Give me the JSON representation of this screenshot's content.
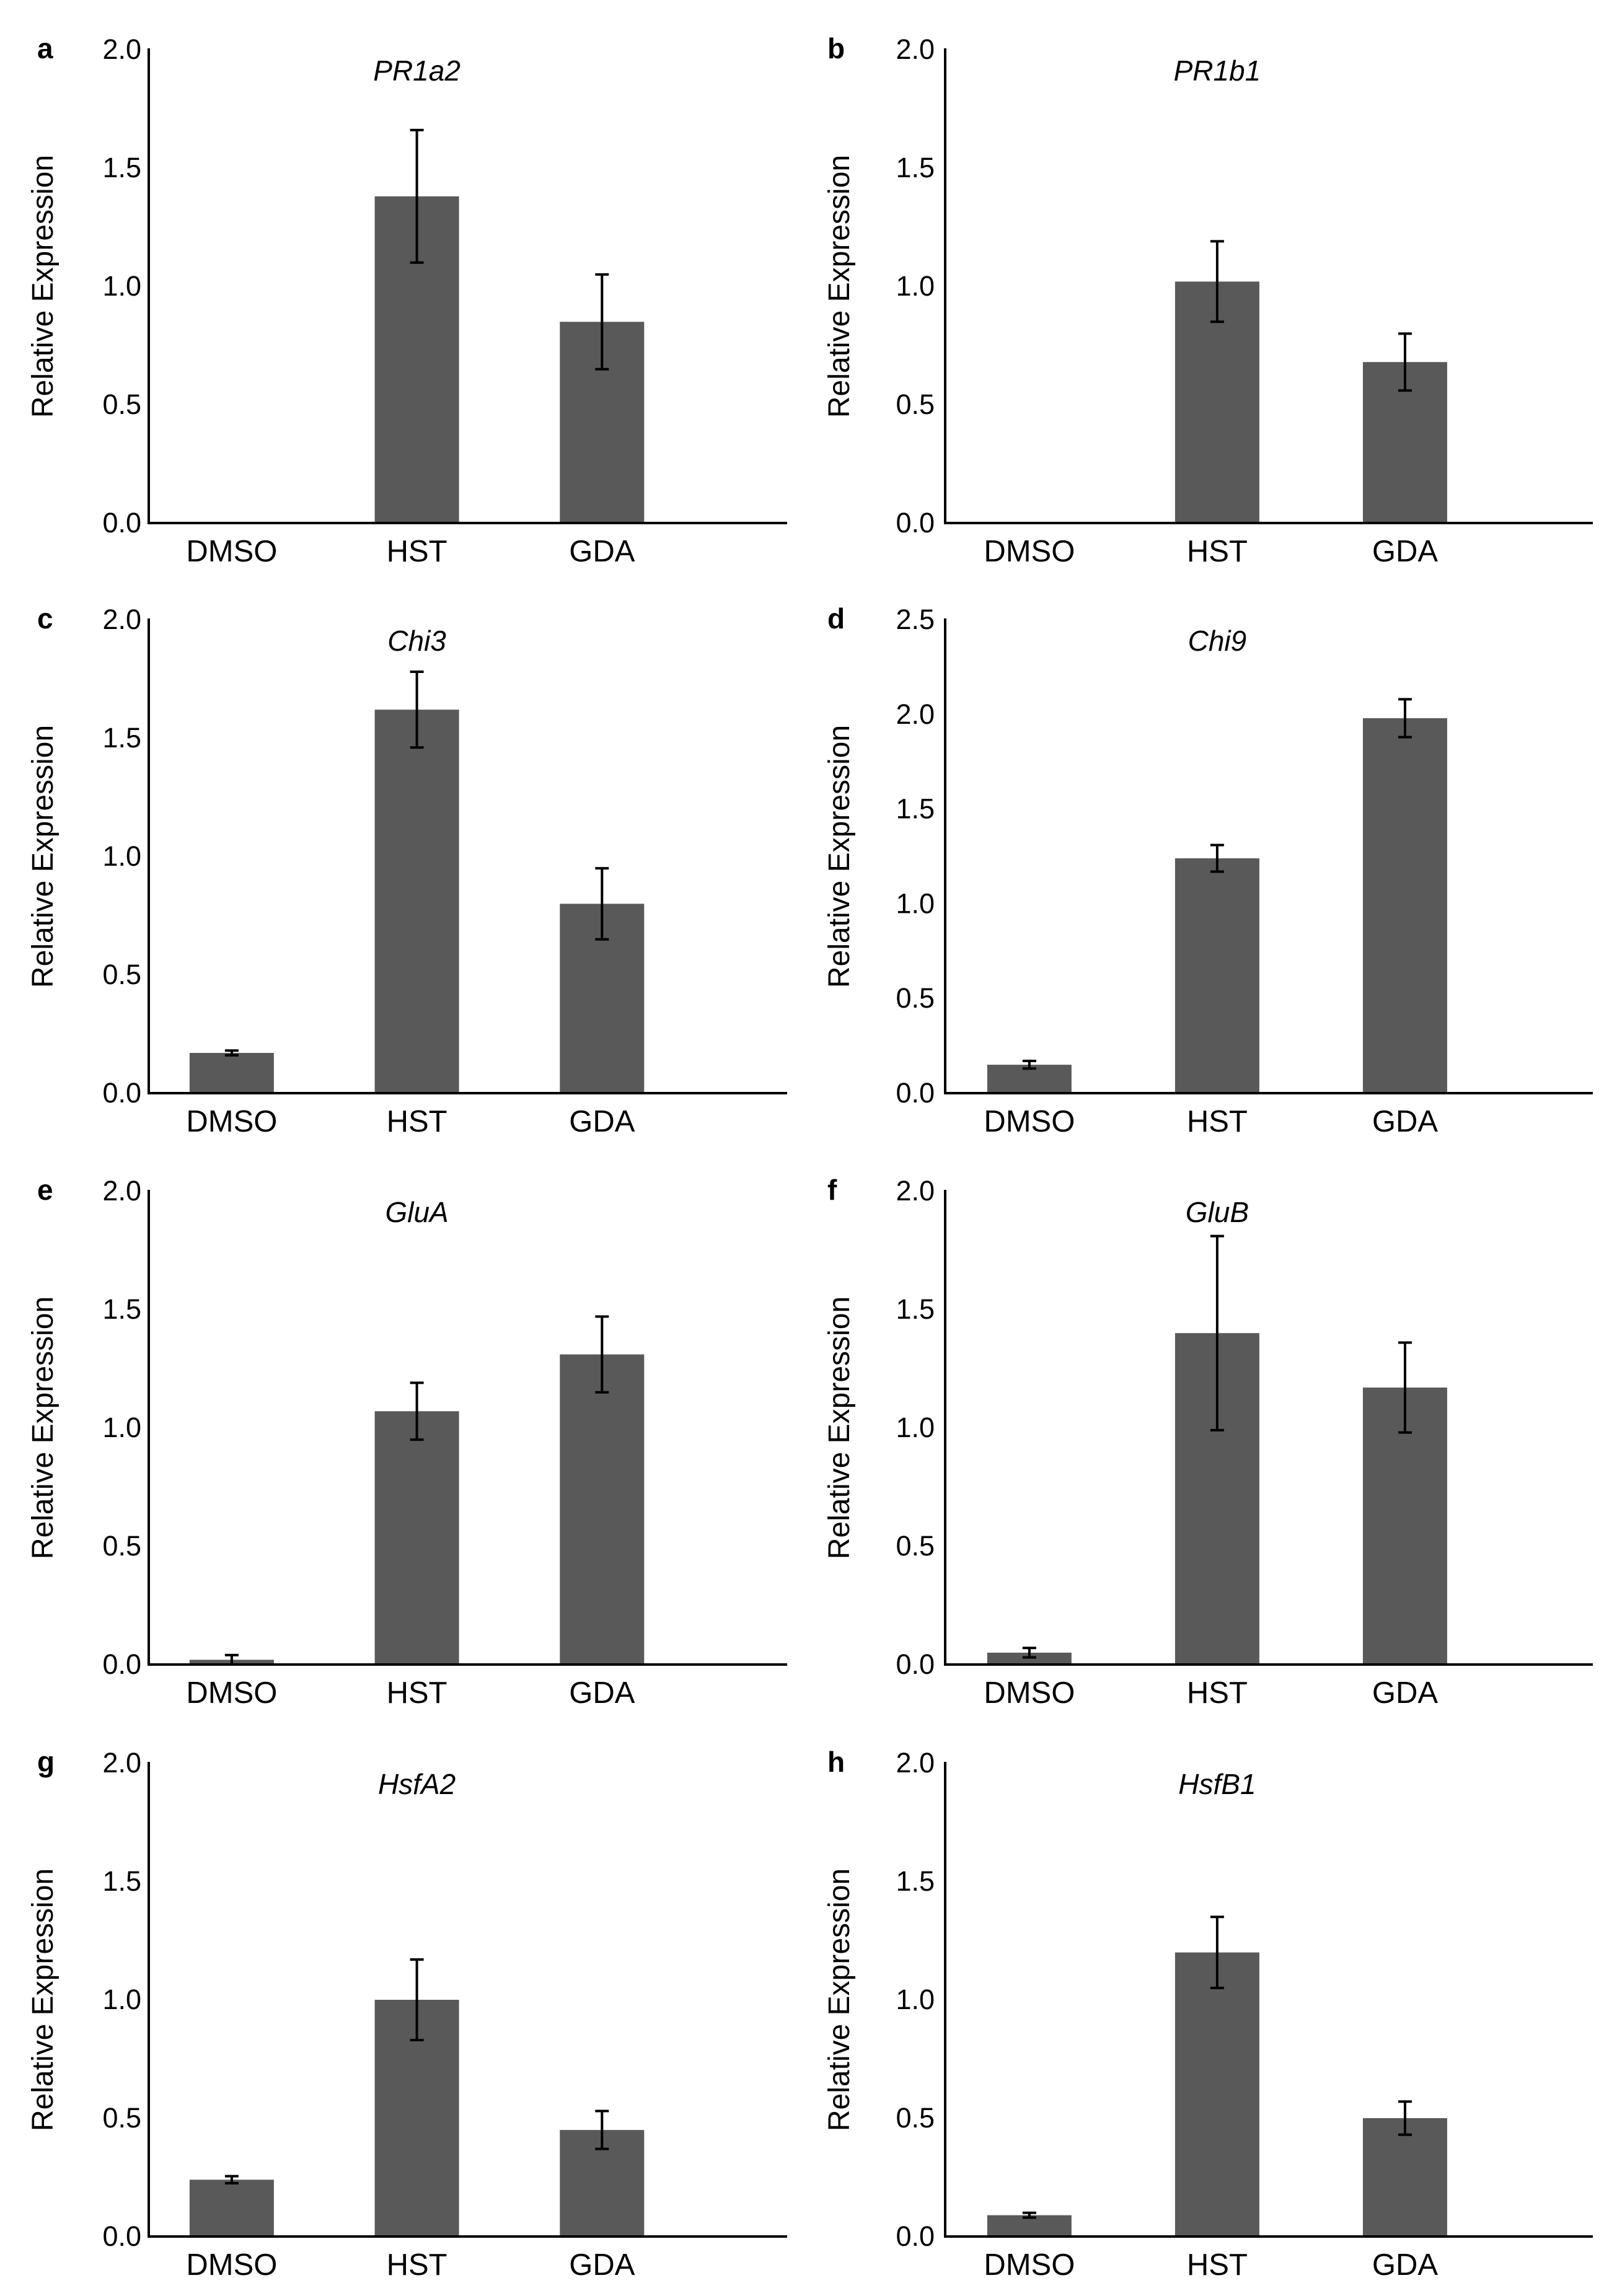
{
  "figure": {
    "y_axis_label": "Relative Expression",
    "categories": [
      "DMSO",
      "HST",
      "GDA"
    ],
    "bar_color": "#595959",
    "axis_color": "#000000"
  },
  "chart_data": [
    {
      "type": "bar",
      "panel": "a",
      "title": "PR1a2",
      "categories": [
        "DMSO",
        "HST",
        "GDA"
      ],
      "ylabel": "Relative Expression",
      "ylim": [
        0,
        2.0
      ],
      "yticks": [
        "0.0",
        "0.5",
        "1.0",
        "1.5",
        "2.0"
      ],
      "series": [
        {
          "values": [
            0.005,
            1.38,
            0.85
          ],
          "errors": [
            0.0,
            0.28,
            0.2
          ]
        }
      ],
      "grid": false
    },
    {
      "type": "bar",
      "panel": "b",
      "title": "PR1b1",
      "categories": [
        "DMSO",
        "HST",
        "GDA"
      ],
      "ylabel": "Relative Expression",
      "ylim": [
        0,
        2.0
      ],
      "yticks": [
        "0.0",
        "0.5",
        "1.0",
        "1.5",
        "2.0"
      ],
      "series": [
        {
          "values": [
            0.005,
            1.02,
            0.68
          ],
          "errors": [
            0.0,
            0.17,
            0.12
          ]
        }
      ],
      "grid": false
    },
    {
      "type": "bar",
      "panel": "c",
      "title": "Chi3",
      "categories": [
        "DMSO",
        "HST",
        "GDA"
      ],
      "ylabel": "Relative Expression",
      "ylim": [
        0,
        2.0
      ],
      "yticks": [
        "0.0",
        "0.5",
        "1.0",
        "1.5",
        "2.0"
      ],
      "series": [
        {
          "values": [
            0.17,
            1.62,
            0.8
          ],
          "errors": [
            0.01,
            0.16,
            0.15
          ]
        }
      ],
      "grid": false
    },
    {
      "type": "bar",
      "panel": "d",
      "title": "Chi9",
      "categories": [
        "DMSO",
        "HST",
        "GDA"
      ],
      "ylabel": "Relative Expression",
      "ylim": [
        0,
        2.5
      ],
      "yticks": [
        "0.0",
        "0.5",
        "1.0",
        "1.5",
        "2.0",
        "2.5"
      ],
      "series": [
        {
          "values": [
            0.15,
            1.24,
            1.98
          ],
          "errors": [
            0.02,
            0.07,
            0.1
          ]
        }
      ],
      "grid": false
    },
    {
      "type": "bar",
      "panel": "e",
      "title": "GluA",
      "categories": [
        "DMSO",
        "HST",
        "GDA"
      ],
      "ylabel": "Relative Expression",
      "ylim": [
        0,
        2.0
      ],
      "yticks": [
        "0.0",
        "0.5",
        "1.0",
        "1.5",
        "2.0"
      ],
      "series": [
        {
          "values": [
            0.02,
            1.07,
            1.31
          ],
          "errors": [
            0.02,
            0.12,
            0.16
          ]
        }
      ],
      "grid": false
    },
    {
      "type": "bar",
      "panel": "f",
      "title": "GluB",
      "categories": [
        "DMSO",
        "HST",
        "GDA"
      ],
      "ylabel": "Relative Expression",
      "ylim": [
        0,
        2.0
      ],
      "yticks": [
        "0.0",
        "0.5",
        "1.0",
        "1.5",
        "2.0"
      ],
      "series": [
        {
          "values": [
            0.05,
            1.4,
            1.17
          ],
          "errors": [
            0.02,
            0.41,
            0.19
          ]
        }
      ],
      "grid": false
    },
    {
      "type": "bar",
      "panel": "g",
      "title": "HsfA2",
      "categories": [
        "DMSO",
        "HST",
        "GDA"
      ],
      "ylabel": "Relative Expression",
      "ylim": [
        0,
        2.0
      ],
      "yticks": [
        "0.0",
        "0.5",
        "1.0",
        "1.5",
        "2.0"
      ],
      "series": [
        {
          "values": [
            0.24,
            1.0,
            0.45
          ],
          "errors": [
            0.015,
            0.17,
            0.08
          ]
        }
      ],
      "grid": false
    },
    {
      "type": "bar",
      "panel": "h",
      "title": "HsfB1",
      "categories": [
        "DMSO",
        "HST",
        "GDA"
      ],
      "ylabel": "Relative Expression",
      "ylim": [
        0,
        2.0
      ],
      "yticks": [
        "0.0",
        "0.5",
        "1.0",
        "1.5",
        "2.0"
      ],
      "series": [
        {
          "values": [
            0.09,
            1.2,
            0.5
          ],
          "errors": [
            0.01,
            0.15,
            0.07
          ]
        }
      ],
      "grid": false
    }
  ]
}
